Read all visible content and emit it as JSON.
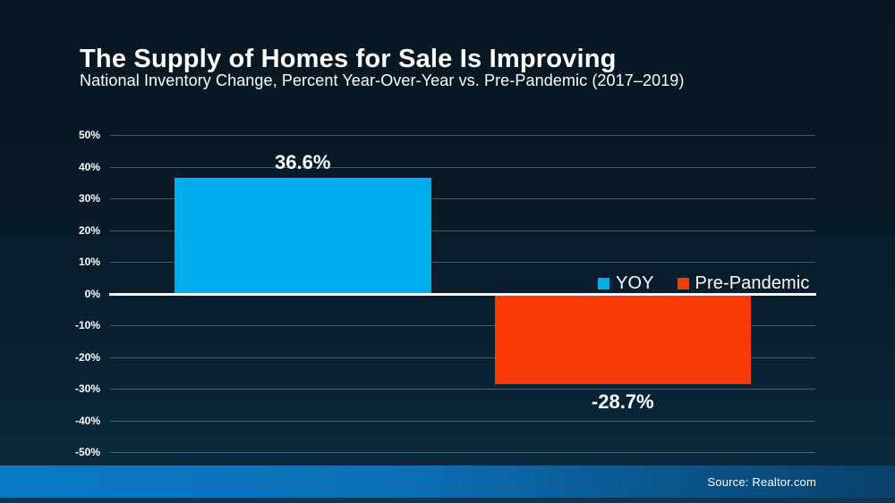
{
  "header": {
    "title": "The Supply of Homes for Sale Is Improving",
    "subtitle": "National Inventory Change, Percent Year-Over-Year vs. Pre-Pandemic (2017–2019)"
  },
  "footer": {
    "source": "Source: Realtor.com"
  },
  "colors": {
    "yoy_blue": "#00aeef",
    "pre_pandemic_orange": "#fa3b05",
    "background_top": "#071622",
    "background_bottom": "#0a2a40",
    "footer_gradient_left": "#0b7ac5",
    "footer_gradient_right": "#0a406a",
    "gridline": "rgba(185,200,212,0.35)",
    "zero_line": "#f2f6f8"
  },
  "chart_data": {
    "type": "bar",
    "title": "The Supply of Homes for Sale Is Improving",
    "subtitle": "National Inventory Change, Percent Year-Over-Year vs. Pre-Pandemic (2017–2019)",
    "categories": [
      "YOY",
      "Pre-Pandemic"
    ],
    "series": [
      {
        "name": "YOY",
        "value": 36.6,
        "label": "36.6%",
        "color": "#00aeef"
      },
      {
        "name": "Pre-Pandemic",
        "value": -28.7,
        "label": "-28.7%",
        "color": "#fa3b05"
      }
    ],
    "xlabel": "",
    "ylabel": "",
    "ylim": [
      -50,
      50
    ],
    "y_ticks": [
      {
        "label": "50%",
        "value": 50
      },
      {
        "label": "40%",
        "value": 40
      },
      {
        "label": "30%",
        "value": 30
      },
      {
        "label": "20%",
        "value": 20
      },
      {
        "label": "10%",
        "value": 10
      },
      {
        "label": "0%",
        "value": 0
      },
      {
        "label": "-10%",
        "value": -10
      },
      {
        "label": "-20%",
        "value": -20
      },
      {
        "label": "-30%",
        "value": -30
      },
      {
        "label": "-40%",
        "value": -40
      },
      {
        "label": "-50%",
        "value": -50
      }
    ],
    "grid": true,
    "legend_position": "top-right",
    "legend": [
      "YOY",
      "Pre-Pandemic"
    ]
  }
}
